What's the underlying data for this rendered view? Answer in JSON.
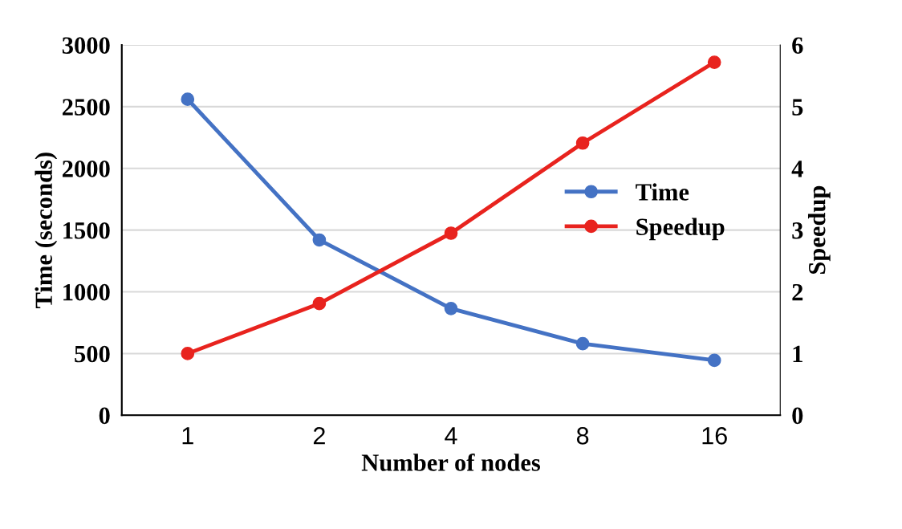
{
  "chart_data": {
    "type": "line",
    "xlabel": "Number of nodes",
    "ylabel": "Time (seconds)",
    "y2label": "Speedup",
    "categories": [
      "1",
      "2",
      "4",
      "8",
      "16"
    ],
    "series": [
      {
        "name": "Time",
        "color": "#4472c4",
        "values": [
          2560,
          1420,
          865,
          580,
          445
        ]
      },
      {
        "name": "Speedup",
        "color": "#e8231e",
        "axis": "y2",
        "values": [
          1.0,
          1.81,
          2.95,
          4.41,
          5.72
        ]
      }
    ],
    "ylim": [
      0,
      3000
    ],
    "yticks": [
      0,
      500,
      1000,
      1500,
      2000,
      2500,
      3000
    ],
    "y2lim": [
      0,
      6
    ],
    "y2ticks": [
      0,
      1,
      2,
      3,
      4,
      5,
      6
    ],
    "grid": "y",
    "legend": "center right",
    "marker": "circle",
    "line_style": "solid"
  }
}
